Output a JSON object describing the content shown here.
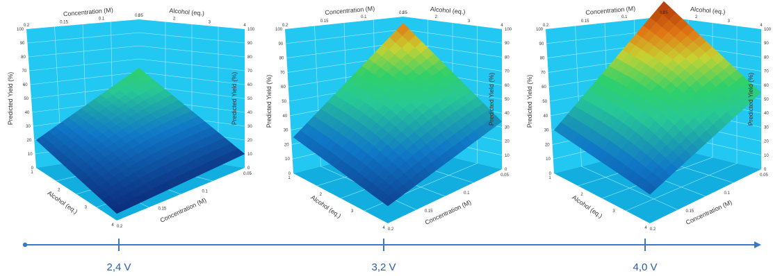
{
  "colors": {
    "panel": "#22c7f2",
    "panel_dark": "#12aee0",
    "grid": "#a9ecff",
    "timeline": "#3a78c9",
    "surface_low": "#0b1d6b",
    "surface_mid": "#2fd06a",
    "surface_high": "#b8430c"
  },
  "timeline": {
    "labels": [
      "2,4 V",
      "3,2 V",
      "4,0 V"
    ]
  },
  "chart_data": [
    {
      "type": "surface",
      "condition": "2,4 V",
      "x_axis": {
        "label": "Concentration (M)",
        "ticks": [
          "0.2",
          "0.15",
          "0.1",
          "0.05"
        ],
        "range": [
          0.05,
          0.2
        ]
      },
      "y_axis": {
        "label": "Alcohol (eq.)",
        "ticks": [
          "1",
          "2",
          "3",
          "4"
        ],
        "range": [
          1,
          4
        ]
      },
      "z_axis": {
        "label": "Predicted Yield (%)",
        "ticks": [
          "0",
          "10",
          "20",
          "30",
          "40",
          "50",
          "60",
          "70",
          "80",
          "90",
          "100"
        ],
        "range": [
          0,
          100
        ]
      },
      "corners": {
        "high_conc_high_alc": 10,
        "high_conc_low_alc": 60,
        "low_conc_low_alc": 20,
        "low_conc_high_alc": 5
      },
      "peak": 60
    },
    {
      "type": "surface",
      "condition": "3,2 V",
      "x_axis": {
        "label": "Concentration (M)",
        "ticks": [
          "0.2",
          "0.15",
          "0.1",
          "0.05"
        ],
        "range": [
          0.05,
          0.2
        ]
      },
      "y_axis": {
        "label": "Alcohol (eq.)",
        "ticks": [
          "1",
          "2",
          "3",
          "4"
        ],
        "range": [
          1,
          4
        ]
      },
      "z_axis": {
        "label": "Predicted Yield (%)",
        "ticks": [
          "0",
          "10",
          "20",
          "30",
          "40",
          "50",
          "60",
          "70",
          "80",
          "90",
          "100"
        ],
        "range": [
          0,
          100
        ]
      },
      "corners": {
        "high_conc_high_alc": 33,
        "high_conc_low_alc": 85,
        "low_conc_low_alc": 25,
        "low_conc_high_alc": 12
      },
      "peak": 85
    },
    {
      "type": "surface",
      "condition": "4,0 V",
      "x_axis": {
        "label": "Concentration (M)",
        "ticks": [
          "0.2",
          "0.15",
          "0.1",
          "0.05"
        ],
        "range": [
          0.05,
          0.2
        ]
      },
      "y_axis": {
        "label": "Alcohol (eq.)",
        "ticks": [
          "1",
          "2",
          "3",
          "4"
        ],
        "range": [
          1,
          4
        ]
      },
      "z_axis": {
        "label": "Predicted Yield (%)",
        "ticks": [
          "0",
          "10",
          "20",
          "30",
          "40",
          "50",
          "60",
          "70",
          "80",
          "90",
          "100"
        ],
        "range": [
          0,
          100
        ]
      },
      "corners": {
        "high_conc_high_alc": 53,
        "high_conc_low_alc": 100,
        "low_conc_low_alc": 30,
        "low_conc_high_alc": 20
      },
      "peak": 100
    }
  ]
}
